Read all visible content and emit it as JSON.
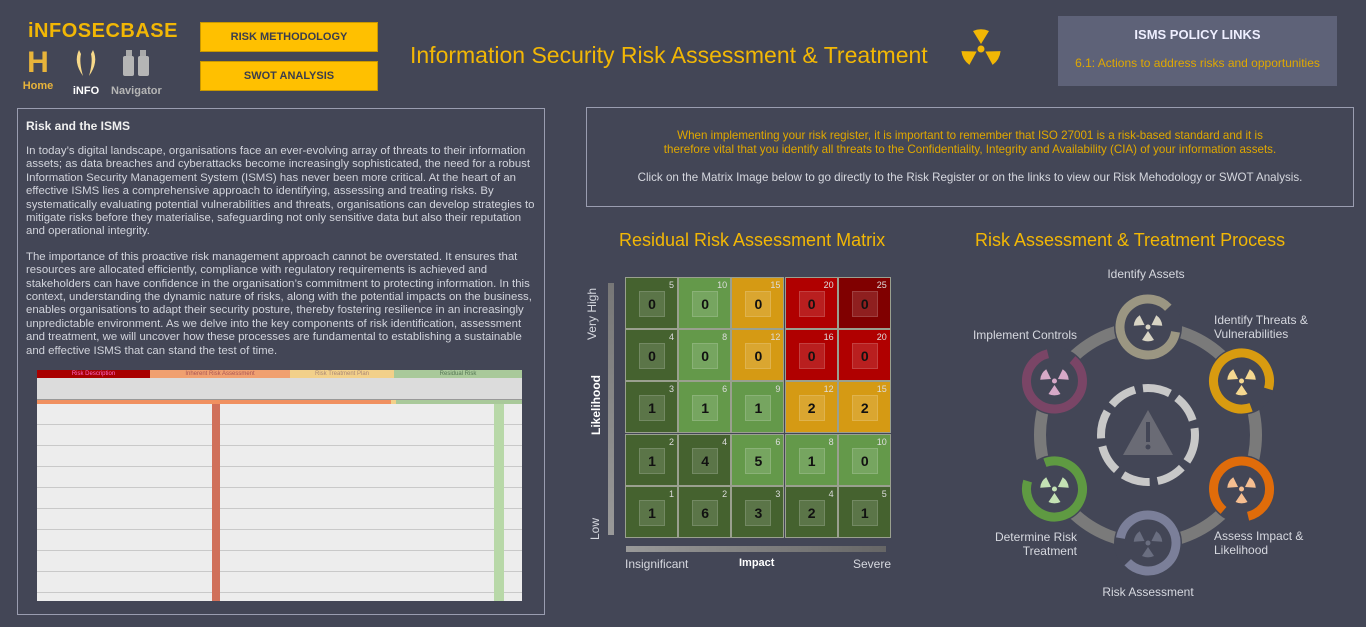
{
  "header": {
    "logo": "iNFOSECBASE",
    "nav": [
      {
        "label": "Home",
        "icon": "home-h-icon"
      },
      {
        "label": "iNFO",
        "icon": "info-icon"
      },
      {
        "label": "Navigator",
        "icon": "binoculars-icon"
      }
    ],
    "buttons": {
      "risk_methodology": "RISK METHODOLOGY",
      "swot": "SWOT ANALYSIS"
    },
    "title": "Information Security Risk Assessment & Treatment",
    "policy": {
      "heading": "ISMS POLICY LINKS",
      "link": "6.1: Actions to address risks and opportunities"
    }
  },
  "panel": {
    "heading": "Risk and the ISMS",
    "p1": "In today’s digital landscape, organisations face an ever-evolving array of threats to their information assets; as data breaches and cyberattacks become increasingly sophisticated, the need for a robust Information Security Management System (ISMS) has never been more critical. At the heart of an effective ISMS lies a comprehensive approach to identifying, assessing and treating risks. By systematically evaluating potential vulnerabilities and threats, organisations can develop strategies to mitigate risks before they materialise, safeguarding not only sensitive data but also their reputation and operational integrity.",
    "p2": "The importance of this proactive risk management approach cannot be overstated. It ensures that resources are allocated efficiently, compliance with regulatory requirements is achieved and stakeholders can have confidence in the organisation’s commitment to protecting information. In this context, understanding the dynamic nature of risks, along with the potential impacts on the business, enables organisations to adapt their security posture, thereby fostering resilience in an increasingly unpredictable environment. As we delve into the key components of risk identification, assessment and treatment, we will uncover how these processes are fundamental to establishing a sustainable and effective ISMS that can stand the test of time.",
    "sheet_headers": [
      "Risk Description",
      "Inherent Risk Assessment",
      "Risk Treatment Plan",
      "Residual Risk"
    ]
  },
  "info": {
    "line1": "When implementing your risk register, it is important to remember that ISO 27001 is a risk-based standard and it is",
    "line2": "therefore vital that you identify all threats to the Confidentiality, Integrity and Availability (CIA) of your information assets.",
    "line3": "Click on the Matrix  Image below to go directly to the Risk Register or on the links to view our Risk Mehodology or SWOT Analysis."
  },
  "matrix": {
    "title": "Residual Risk Assessment Matrix",
    "ylabel": "Likelihood",
    "y_high": "Very High",
    "y_low": "Low",
    "xlabel": "Impact",
    "x_low": "Insignificant",
    "x_high": "Severe",
    "rows": [
      {
        "scores": [
          5,
          10,
          15,
          20,
          25
        ],
        "counts": [
          0,
          0,
          0,
          0,
          0
        ],
        "colors": [
          "#45622f",
          "#64994a",
          "#d59a14",
          "#b00000",
          "#800000"
        ]
      },
      {
        "scores": [
          4,
          8,
          12,
          16,
          20
        ],
        "counts": [
          0,
          0,
          0,
          0,
          0
        ],
        "colors": [
          "#45622f",
          "#64994a",
          "#d59a14",
          "#b00000",
          "#b00000"
        ]
      },
      {
        "scores": [
          3,
          6,
          9,
          12,
          15
        ],
        "counts": [
          1,
          1,
          1,
          2,
          2
        ],
        "colors": [
          "#45622f",
          "#64994a",
          "#64994a",
          "#d59a14",
          "#d59a14"
        ]
      },
      {
        "scores": [
          2,
          4,
          6,
          8,
          10
        ],
        "counts": [
          1,
          4,
          5,
          1,
          0
        ],
        "colors": [
          "#45622f",
          "#45622f",
          "#64994a",
          "#64994a",
          "#64994a"
        ]
      },
      {
        "scores": [
          1,
          2,
          3,
          4,
          5
        ],
        "counts": [
          1,
          6,
          3,
          2,
          1
        ],
        "colors": [
          "#45622f",
          "#45622f",
          "#45622f",
          "#45622f",
          "#45622f"
        ]
      }
    ]
  },
  "process": {
    "title": "Risk Assessment & Treatment Process",
    "steps": [
      {
        "label": "Identify Assets",
        "color": "#9b9682",
        "icon_color": "#d8d4c4"
      },
      {
        "label": "Identify Threats & Vulnerabilities",
        "color": "#d89b10",
        "icon_color": "#f5d890"
      },
      {
        "label": "Assess Impact & Likelihood",
        "color": "#e06c0a",
        "icon_color": "#f6be90"
      },
      {
        "label": "Risk Assessment",
        "color": "#7b7f99",
        "icon_color": "#6a6e80"
      },
      {
        "label": "Determine Risk Treatment",
        "color": "#5f9a42",
        "icon_color": "#c4e2b4"
      },
      {
        "label": "Implement Controls",
        "color": "#7a4566",
        "icon_color": "#d7a9c8"
      }
    ]
  }
}
